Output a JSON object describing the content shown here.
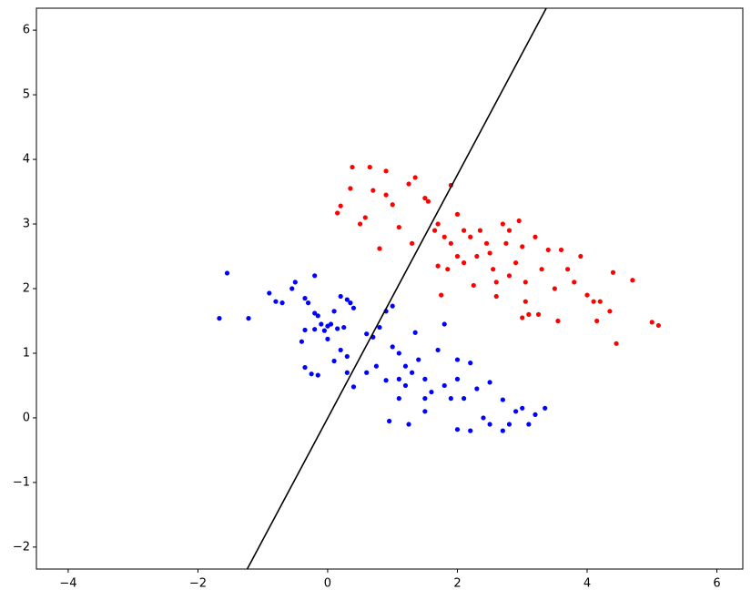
{
  "chart_data": {
    "type": "scatter",
    "xlim": [
      -4.49,
      6.4
    ],
    "ylim": [
      -2.34,
      6.34
    ],
    "xticks": [
      {
        "value": -4,
        "label": "−4"
      },
      {
        "value": -2,
        "label": "−2"
      },
      0,
      2,
      4,
      6
    ],
    "yticks": [
      {
        "value": -2,
        "label": "−2"
      },
      {
        "value": -1,
        "label": "−1"
      },
      0,
      1,
      2,
      3,
      4,
      5,
      6
    ],
    "series": [
      {
        "color": "#0000ff",
        "type": "scatter",
        "x": [
          -1.67,
          -1.55,
          -1.22,
          -0.9,
          -0.8,
          -0.7,
          -0.55,
          -0.5,
          -0.2,
          -0.35,
          -0.3,
          -0.2,
          -0.15,
          -0.4,
          -0.35,
          -0.2,
          -0.1,
          0,
          0.05,
          0.15,
          0.25,
          0.3,
          0.35,
          0.4,
          0.2,
          0.1,
          0,
          -0.05,
          0.2,
          0.3,
          0.1,
          -0.35,
          -0.25,
          -0.15,
          0.3,
          0.4,
          0.6,
          0.7,
          0.8,
          0.9,
          1.0,
          0.75,
          0.6,
          0.9,
          1.0,
          1.1,
          1.2,
          1.3,
          1.1,
          1.2,
          1.4,
          1.5,
          1.6,
          1.7,
          1.8,
          1.8,
          1.9,
          2.0,
          2.0,
          2.2,
          2.3,
          2.4,
          2.2,
          2.0,
          2.5,
          2.7,
          2.8,
          2.9,
          3.0,
          3.1,
          3.2,
          3.35,
          2.7,
          2.5,
          0.95,
          1.25,
          1.5,
          1.1,
          1.35,
          1.5,
          2.1
        ],
        "values": [
          1.54,
          2.24,
          1.54,
          1.93,
          1.8,
          1.78,
          2.0,
          2.1,
          2.2,
          1.85,
          1.78,
          1.62,
          1.58,
          1.18,
          1.36,
          1.37,
          1.45,
          1.42,
          1.45,
          1.38,
          1.4,
          1.83,
          1.78,
          1.7,
          1.88,
          1.65,
          1.22,
          1.35,
          1.05,
          0.95,
          0.88,
          0.78,
          0.68,
          0.66,
          0.7,
          0.48,
          1.3,
          1.25,
          1.4,
          1.65,
          1.73,
          0.8,
          0.7,
          0.58,
          1.1,
          1.0,
          0.8,
          0.7,
          0.6,
          0.5,
          0.9,
          0.6,
          0.4,
          1.05,
          1.45,
          0.5,
          0.3,
          0.6,
          0.9,
          0.85,
          0.45,
          0.0,
          -0.2,
          -0.18,
          -0.1,
          -0.2,
          -0.1,
          0.1,
          0.15,
          -0.1,
          0.05,
          0.15,
          0.28,
          0.55,
          -0.05,
          -0.1,
          0.1,
          0.3,
          1.32,
          0.3,
          0.3
        ]
      },
      {
        "color": "#ff0000",
        "type": "scatter",
        "x": [
          0.15,
          0.2,
          0.38,
          0.35,
          0.5,
          0.58,
          0.65,
          0.7,
          0.8,
          0.9,
          0.9,
          1.0,
          1.1,
          1.25,
          1.35,
          1.3,
          1.5,
          1.55,
          1.9,
          1.65,
          1.7,
          1.8,
          1.9,
          2.0,
          2.1,
          2.0,
          2.1,
          1.85,
          1.7,
          1.75,
          2.2,
          2.3,
          2.35,
          2.45,
          2.5,
          2.55,
          2.6,
          2.6,
          2.7,
          2.8,
          2.9,
          2.95,
          3.0,
          3.05,
          3.05,
          3.1,
          3.2,
          3.3,
          3.4,
          3.5,
          3.55,
          3.6,
          3.7,
          3.8,
          3.9,
          4.0,
          4.1,
          4.15,
          4.2,
          4.4,
          4.45,
          4.35,
          4.7,
          5.0,
          5.1,
          2.8,
          3.25,
          2.75,
          3.0,
          2.25
        ],
        "values": [
          3.17,
          3.28,
          3.88,
          3.55,
          3.0,
          3.1,
          3.88,
          3.52,
          2.62,
          3.82,
          3.45,
          3.3,
          2.95,
          3.62,
          3.72,
          2.7,
          3.4,
          3.35,
          3.6,
          2.9,
          3.0,
          2.8,
          2.7,
          3.15,
          2.9,
          2.5,
          2.4,
          2.3,
          2.35,
          1.9,
          2.8,
          2.5,
          2.9,
          2.7,
          2.55,
          2.3,
          2.1,
          1.88,
          3.0,
          2.9,
          2.4,
          3.05,
          2.65,
          2.1,
          1.8,
          1.6,
          2.8,
          2.3,
          2.6,
          2.0,
          1.5,
          2.6,
          2.3,
          2.1,
          2.5,
          1.9,
          1.8,
          1.5,
          1.8,
          2.25,
          1.15,
          1.65,
          2.13,
          1.48,
          1.43,
          2.2,
          1.6,
          2.7,
          1.55,
          2.05
        ]
      },
      {
        "color": "#000000",
        "type": "line",
        "x": [
          -1.24,
          3.37
        ],
        "values": [
          -2.34,
          6.34
        ]
      }
    ]
  }
}
